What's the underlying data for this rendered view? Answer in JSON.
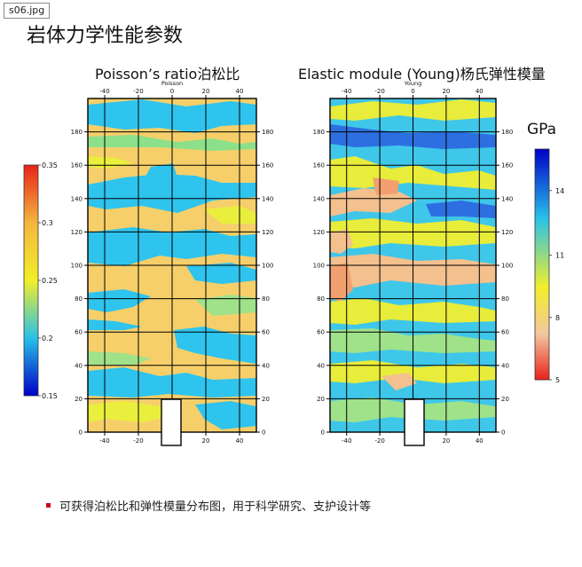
{
  "file_tag": "s06.jpg",
  "title": "岩体力学性能参数",
  "panels": {
    "poisson": {
      "title": "Poisson’s ratio泊松比",
      "subtitle": "Poisson",
      "x_ticks": [
        "-40",
        "-20",
        "0",
        "20",
        "40"
      ],
      "y_ticks": [
        "0",
        "20",
        "40",
        "60",
        "80",
        "100",
        "120",
        "140",
        "160",
        "180"
      ]
    },
    "young": {
      "title": "Elastic module (Young)杨氏弹性模量",
      "subtitle": "Young",
      "x_ticks": [
        "-40",
        "-20",
        "0",
        "20",
        "40"
      ],
      "y_ticks": [
        "0",
        "20",
        "40",
        "60",
        "80",
        "100",
        "120",
        "140",
        "160",
        "180"
      ]
    }
  },
  "colorbars": {
    "poisson": {
      "labels": [
        "0.35",
        "0.3",
        "0.25",
        "0.2",
        "0.15"
      ],
      "colors_top_to_bottom": [
        "#e8231b",
        "#f4b63e",
        "#f2ee2a",
        "#29c1e8",
        "#0000c8"
      ]
    },
    "young": {
      "unit": "GPa",
      "labels": [
        "14",
        "11",
        "8",
        "5"
      ],
      "colors_top_to_bottom": [
        "#0000c8",
        "#29c1e8",
        "#f2ee2a",
        "#f3c7a0",
        "#e8231b"
      ]
    }
  },
  "colors": {
    "poisson_field_base": "#f6cf6a",
    "poisson_field_low": "#2ec4ee",
    "young_field_base": "#3fc7ea",
    "young_field_high": "#f3c08e"
  },
  "bullet": "可获得泊松比和弹性模量分布图，用于科学研究、支护设计等"
}
